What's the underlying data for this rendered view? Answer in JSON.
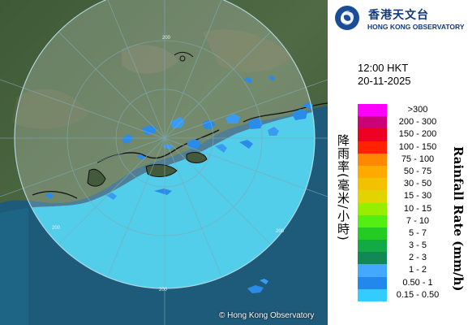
{
  "header": {
    "org_name_zh": "香港天文台",
    "org_name_en": "HONG KONG OBSERVATORY",
    "logo_icon": "hko-swirl-logo-icon"
  },
  "timestamp": {
    "time": "12:00 HKT",
    "date": "20-11-2025"
  },
  "legend": {
    "title_zh": "降雨率(毫米/小時)",
    "title_en": "Rainfall Rate (mm/h)",
    "items": [
      {
        "label": ">300",
        "color": "#ff00ff"
      },
      {
        "label": "200 - 300",
        "color": "#cc0077"
      },
      {
        "label": "150 - 200",
        "color": "#ee0022"
      },
      {
        "label": "100 - 150",
        "color": "#ff2200"
      },
      {
        "label": "75 - 100",
        "color": "#ff8800"
      },
      {
        "label": "50 - 75",
        "color": "#ffaa00"
      },
      {
        "label": "30 - 50",
        "color": "#f2c100"
      },
      {
        "label": "15 - 30",
        "color": "#e2d400"
      },
      {
        "label": "10 - 15",
        "color": "#99ee00"
      },
      {
        "label": "7 - 10",
        "color": "#55ee11"
      },
      {
        "label": "5 - 7",
        "color": "#22cc22"
      },
      {
        "label": "3 - 5",
        "color": "#11aa44"
      },
      {
        "label": "2 - 3",
        "color": "#118855"
      },
      {
        "label": "1 - 2",
        "color": "#44a8ff"
      },
      {
        "label": "0.50 - 1",
        "color": "#2288ee"
      },
      {
        "label": "0.15 - 0.50",
        "color": "#33ccff"
      }
    ]
  },
  "map": {
    "range_labels": [
      "200",
      "200",
      "200",
      "200"
    ],
    "copyright": "© Hong Kong Observatory"
  }
}
